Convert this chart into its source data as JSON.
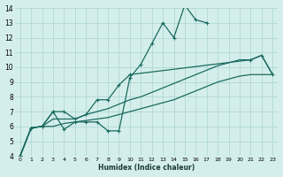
{
  "xlabel": "Humidex (Indice chaleur)",
  "bg_color": "#d4eeeb",
  "grid_color": "#aad4d0",
  "line_color": "#1a6b60",
  "xlim": [
    -0.5,
    23.5
  ],
  "ylim": [
    4,
    14
  ],
  "xticks": [
    0,
    1,
    2,
    3,
    4,
    5,
    6,
    7,
    8,
    9,
    10,
    11,
    12,
    13,
    14,
    15,
    16,
    17,
    18,
    19,
    20,
    21,
    22,
    23
  ],
  "yticks": [
    4,
    5,
    6,
    7,
    8,
    9,
    10,
    11,
    12,
    13,
    14
  ],
  "line1_x": [
    0,
    1,
    2,
    3,
    4,
    5,
    6,
    7,
    8,
    9,
    10,
    11,
    12,
    13,
    14,
    15,
    16,
    17
  ],
  "line1_y": [
    4.0,
    5.9,
    6.0,
    7.0,
    5.8,
    6.3,
    6.3,
    6.3,
    5.7,
    5.7,
    9.3,
    10.2,
    11.6,
    13.0,
    12.0,
    14.2,
    13.2,
    13.0
  ],
  "line2_x": [
    0,
    1,
    2,
    3,
    4,
    5,
    6,
    7,
    8,
    9,
    10,
    21,
    22,
    23
  ],
  "line2_y": [
    4.0,
    5.9,
    6.0,
    7.0,
    7.0,
    6.5,
    6.8,
    7.8,
    7.8,
    8.8,
    9.5,
    10.5,
    10.8,
    9.5
  ],
  "line3_x": [
    0,
    1,
    2,
    3,
    4,
    5,
    6,
    7,
    8,
    9,
    10,
    11,
    12,
    13,
    14,
    15,
    16,
    17,
    18,
    19,
    20,
    21,
    22,
    23
  ],
  "line3_y": [
    4.0,
    5.9,
    6.0,
    6.5,
    6.5,
    6.5,
    6.8,
    7.0,
    7.2,
    7.5,
    7.8,
    8.0,
    8.3,
    8.6,
    8.9,
    9.2,
    9.5,
    9.8,
    10.1,
    10.3,
    10.5,
    10.5,
    10.8,
    9.5
  ],
  "line4_x": [
    0,
    1,
    2,
    3,
    4,
    5,
    6,
    7,
    8,
    9,
    10,
    11,
    12,
    13,
    14,
    15,
    16,
    17,
    18,
    19,
    20,
    21,
    22,
    23
  ],
  "line4_y": [
    4.0,
    5.9,
    6.0,
    6.0,
    6.2,
    6.3,
    6.4,
    6.5,
    6.6,
    6.8,
    7.0,
    7.2,
    7.4,
    7.6,
    7.8,
    8.1,
    8.4,
    8.7,
    9.0,
    9.2,
    9.4,
    9.5,
    9.5,
    9.5
  ]
}
